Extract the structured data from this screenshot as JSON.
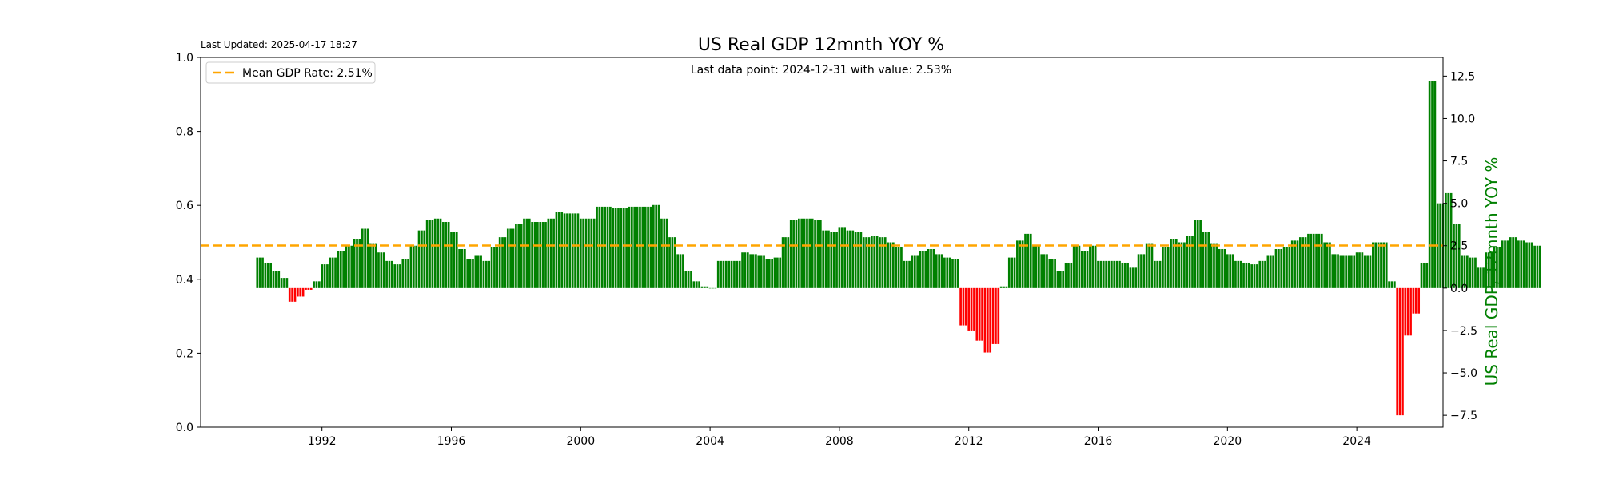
{
  "chart_data": {
    "type": "bar",
    "title": "US Real GDP 12mnth YOY %",
    "last_updated": "Last Updated: 2025-04-17 18:27",
    "annotation": "Last data point: 2024-12-31 with value: 2.53%",
    "ylabel_right": "US Real GDP, 12mnth YOY %",
    "legend": {
      "label": "Mean GDP Rate: 2.51%",
      "placement": "upper-left",
      "color": "#ffa500"
    },
    "mean": 2.51,
    "x_range": [
      "1988-04-01",
      "2026-09-01"
    ],
    "left_axis": {
      "ylim": [
        0.0,
        1.0
      ],
      "ticks": [
        "0.0",
        "0.2",
        "0.4",
        "0.6",
        "0.8",
        "1.0"
      ]
    },
    "right_axis": {
      "ylim": [
        -8.2,
        13.6
      ],
      "ticks": [
        "-7.5",
        "-5.0",
        "-2.5",
        "0.0",
        "2.5",
        "5.0",
        "7.5",
        "10.0",
        "12.5"
      ]
    },
    "x_ticks": [
      "1992",
      "1996",
      "2000",
      "2004",
      "2008",
      "2012",
      "2016",
      "2020",
      "2024"
    ],
    "colors": {
      "positive": "#008000",
      "negative": "#ff0000",
      "mean_line": "#ffa500",
      "ylabel": "#008000"
    },
    "frequency": "monthly",
    "series_start": "1990-01",
    "quarterly_values": [
      1.8,
      1.5,
      1.0,
      0.6,
      -0.8,
      -0.5,
      -0.1,
      0.4,
      1.4,
      1.8,
      2.2,
      2.5,
      2.9,
      3.5,
      2.6,
      2.1,
      1.6,
      1.4,
      1.7,
      2.5,
      3.4,
      4.0,
      4.1,
      3.9,
      3.3,
      2.3,
      1.7,
      1.9,
      1.6,
      2.4,
      3.0,
      3.5,
      3.8,
      4.1,
      3.9,
      3.9,
      4.1,
      4.5,
      4.4,
      4.4,
      4.1,
      4.1,
      4.8,
      4.8,
      4.7,
      4.7,
      4.8,
      4.8,
      4.8,
      4.9,
      4.1,
      3.0,
      2.0,
      1.0,
      0.4,
      0.1,
      0.0,
      1.6,
      1.6,
      1.6,
      2.1,
      2.0,
      1.9,
      1.7,
      1.8,
      3.0,
      4.0,
      4.1,
      4.1,
      4.0,
      3.4,
      3.3,
      3.6,
      3.4,
      3.3,
      3.0,
      3.1,
      3.0,
      2.7,
      2.4,
      1.6,
      1.9,
      2.2,
      2.3,
      2.0,
      1.8,
      1.7,
      -2.2,
      -2.5,
      -3.1,
      -3.8,
      -3.3,
      0.1,
      1.8,
      2.8,
      3.2,
      2.5,
      2.0,
      1.7,
      1.0,
      1.5,
      2.5,
      2.2,
      2.5,
      1.6,
      1.6,
      1.6,
      1.5,
      1.2,
      2.0,
      2.6,
      1.6,
      2.4,
      2.9,
      2.7,
      3.1,
      4.0,
      3.3,
      2.6,
      2.3,
      2.0,
      1.6,
      1.5,
      1.4,
      1.6,
      1.9,
      2.3,
      2.4,
      2.8,
      3.0,
      3.2,
      3.2,
      2.7,
      2.0,
      1.9,
      1.9,
      2.1,
      1.9,
      2.7,
      2.7,
      0.4,
      -7.5,
      -2.8,
      -1.5,
      1.5,
      12.2,
      5.0,
      5.6,
      3.8,
      1.9,
      1.8,
      1.2,
      2.1,
      2.4,
      2.8,
      3.0,
      2.8,
      2.7,
      2.5
    ]
  }
}
